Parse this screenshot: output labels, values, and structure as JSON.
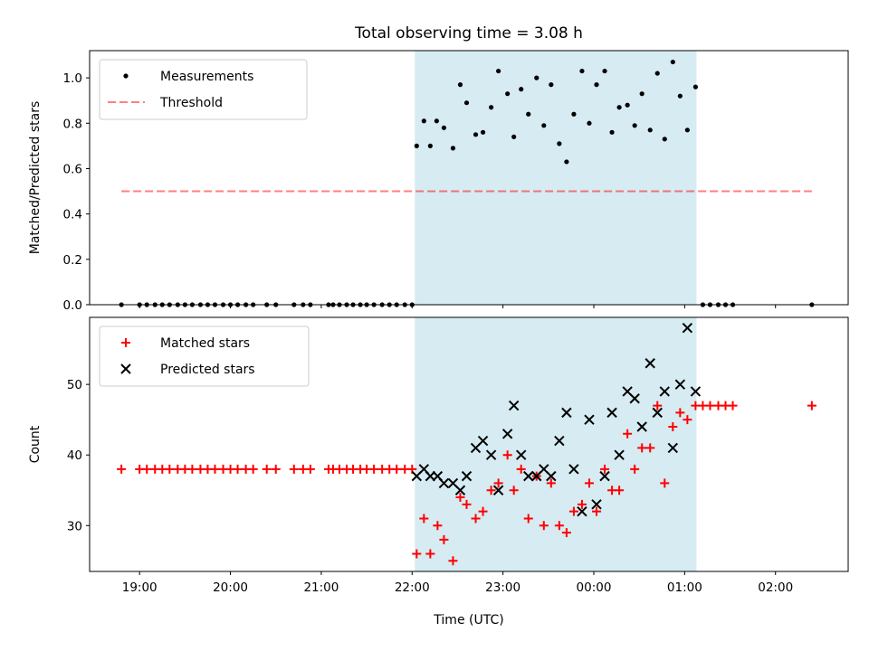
{
  "title": "Total observing time = 3.08 h",
  "colors": {
    "shade": "#add8e6",
    "threshold": "#ff0000",
    "matched": "#ff0000",
    "predicted": "#000000",
    "measurement": "#000000"
  },
  "chart_data": [
    {
      "type": "scatter",
      "panel": "top",
      "ylabel": "Matched/Predicted stars",
      "xlim": [
        18.45,
        26.8
      ],
      "ylim": [
        0,
        1.12
      ],
      "yticks": [
        "0.0",
        "0.2",
        "0.4",
        "0.6",
        "0.8",
        "1.0"
      ],
      "yticks_values": [
        0,
        0.2,
        0.4,
        0.6,
        0.8,
        1.0
      ],
      "shaded_span": [
        22.03,
        25.13
      ],
      "legend": {
        "placement": "top-left",
        "entries": [
          "Measurements",
          "Threshold"
        ]
      },
      "threshold": {
        "name": "Threshold",
        "value": 0.5,
        "x_range": [
          18.8,
          26.4
        ]
      },
      "series": [
        {
          "name": "Measurements",
          "x": [
            18.8,
            19.0,
            19.08,
            19.17,
            19.25,
            19.33,
            19.42,
            19.5,
            19.58,
            19.67,
            19.75,
            19.83,
            19.92,
            20.0,
            20.08,
            20.17,
            20.25,
            20.4,
            20.5,
            20.7,
            20.8,
            20.88,
            21.08,
            21.13,
            21.2,
            21.28,
            21.35,
            21.43,
            21.5,
            21.58,
            21.67,
            21.75,
            21.83,
            21.92,
            22.0,
            22.05,
            22.13,
            22.2,
            22.27,
            22.35,
            22.45,
            22.53,
            22.6,
            22.7,
            22.78,
            22.87,
            22.95,
            23.05,
            23.12,
            23.2,
            23.28,
            23.37,
            23.45,
            23.53,
            23.62,
            23.7,
            23.78,
            23.87,
            23.95,
            24.03,
            24.12,
            24.2,
            24.28,
            24.37,
            24.45,
            24.53,
            24.62,
            24.7,
            24.78,
            24.87,
            24.95,
            25.03,
            25.12,
            25.2,
            25.28,
            25.37,
            25.45,
            25.53,
            26.4
          ],
          "y": [
            0,
            0,
            0,
            0,
            0,
            0,
            0,
            0,
            0,
            0,
            0,
            0,
            0,
            0,
            0,
            0,
            0,
            0,
            0,
            0,
            0,
            0,
            0,
            0,
            0,
            0,
            0,
            0,
            0,
            0,
            0,
            0,
            0,
            0,
            0,
            0.7,
            0.81,
            0.7,
            0.81,
            0.78,
            0.69,
            0.97,
            0.89,
            0.75,
            0.76,
            0.87,
            1.03,
            0.93,
            0.74,
            0.95,
            0.84,
            1.0,
            0.79,
            0.97,
            0.71,
            0.63,
            0.84,
            1.03,
            0.8,
            0.97,
            1.03,
            0.76,
            0.87,
            0.88,
            0.79,
            0.93,
            0.77,
            1.02,
            0.73,
            1.07,
            0.92,
            0.77,
            0.96,
            0,
            0,
            0,
            0,
            0,
            0
          ]
        }
      ]
    },
    {
      "type": "scatter",
      "panel": "bottom",
      "xlabel": "Time (UTC)",
      "ylabel": "Count",
      "xlim": [
        18.45,
        26.8
      ],
      "ylim": [
        23.5,
        59.5
      ],
      "xticks": [
        "19:00",
        "20:00",
        "21:00",
        "22:00",
        "23:00",
        "00:00",
        "01:00",
        "02:00"
      ],
      "xticks_values": [
        19,
        20,
        21,
        22,
        23,
        24,
        25,
        26
      ],
      "yticks": [
        "30",
        "40",
        "50"
      ],
      "yticks_values": [
        30,
        40,
        50
      ],
      "shaded_span": [
        22.03,
        25.13
      ],
      "legend": {
        "placement": "top-left",
        "entries": [
          "Matched stars",
          "Predicted stars"
        ]
      },
      "series": [
        {
          "name": "Matched stars",
          "marker": "+",
          "x": [
            18.8,
            19.0,
            19.08,
            19.17,
            19.25,
            19.33,
            19.42,
            19.5,
            19.58,
            19.67,
            19.75,
            19.83,
            19.92,
            20.0,
            20.08,
            20.17,
            20.25,
            20.4,
            20.5,
            20.7,
            20.8,
            20.88,
            21.08,
            21.13,
            21.2,
            21.28,
            21.35,
            21.43,
            21.5,
            21.58,
            21.67,
            21.75,
            21.83,
            21.92,
            22.0,
            22.05,
            22.13,
            22.2,
            22.28,
            22.35,
            22.45,
            22.53,
            22.6,
            22.7,
            22.78,
            22.87,
            22.95,
            23.05,
            23.12,
            23.2,
            23.28,
            23.37,
            23.45,
            23.53,
            23.62,
            23.7,
            23.78,
            23.87,
            23.95,
            24.03,
            24.12,
            24.2,
            24.28,
            24.37,
            24.45,
            24.53,
            24.62,
            24.7,
            24.78,
            24.87,
            24.95,
            25.03,
            25.12,
            25.2,
            25.28,
            25.37,
            25.45,
            25.53,
            26.4
          ],
          "y": [
            38,
            38,
            38,
            38,
            38,
            38,
            38,
            38,
            38,
            38,
            38,
            38,
            38,
            38,
            38,
            38,
            38,
            38,
            38,
            38,
            38,
            38,
            38,
            38,
            38,
            38,
            38,
            38,
            38,
            38,
            38,
            38,
            38,
            38,
            38,
            26,
            31,
            26,
            30,
            28,
            25,
            34,
            33,
            31,
            32,
            35,
            36,
            40,
            35,
            38,
            31,
            37,
            30,
            36,
            30,
            29,
            32,
            33,
            36,
            32,
            38,
            35,
            35,
            43,
            38,
            41,
            41,
            47,
            36,
            44,
            46,
            45,
            47,
            47,
            47,
            47,
            47,
            47,
            47
          ]
        },
        {
          "name": "Predicted stars",
          "marker": "x",
          "x": [
            22.05,
            22.13,
            22.2,
            22.28,
            22.35,
            22.45,
            22.53,
            22.6,
            22.7,
            22.78,
            22.87,
            22.95,
            23.05,
            23.12,
            23.2,
            23.28,
            23.37,
            23.45,
            23.53,
            23.62,
            23.7,
            23.78,
            23.87,
            23.95,
            24.03,
            24.12,
            24.2,
            24.28,
            24.37,
            24.45,
            24.53,
            24.62,
            24.7,
            24.78,
            24.87,
            24.95,
            25.03,
            25.12
          ],
          "y": [
            37,
            38,
            37,
            37,
            36,
            36,
            35,
            37,
            41,
            42,
            40,
            35,
            43,
            47,
            40,
            37,
            37,
            38,
            37,
            42,
            46,
            38,
            32,
            45,
            33,
            37,
            46,
            40,
            49,
            48,
            44,
            53,
            46,
            49,
            41,
            50,
            58,
            49
          ]
        }
      ]
    }
  ]
}
